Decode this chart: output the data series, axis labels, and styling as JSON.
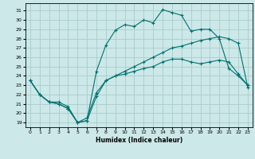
{
  "xlabel": "Humidex (Indice chaleur)",
  "bg_color": "#cce8e8",
  "grid_color": "#aacccc",
  "line_color": "#007070",
  "xlim": [
    -0.5,
    23.5
  ],
  "ylim": [
    18.5,
    31.8
  ],
  "xticks": [
    0,
    1,
    2,
    3,
    4,
    5,
    6,
    7,
    8,
    9,
    10,
    11,
    12,
    13,
    14,
    15,
    16,
    17,
    18,
    19,
    20,
    21,
    22,
    23
  ],
  "yticks": [
    19,
    20,
    21,
    22,
    23,
    24,
    25,
    26,
    27,
    28,
    29,
    30,
    31
  ],
  "line1_x": [
    0,
    1,
    2,
    3,
    4,
    5,
    6,
    7,
    8,
    9,
    10,
    11,
    12,
    13,
    14,
    15,
    16,
    17,
    18,
    19,
    20,
    21,
    22,
    23
  ],
  "line1_y": [
    23.5,
    22.0,
    21.2,
    21.2,
    20.7,
    19.0,
    19.5,
    22.2,
    23.5,
    24.0,
    24.5,
    25.0,
    25.5,
    26.0,
    26.5,
    27.0,
    27.2,
    27.5,
    27.8,
    28.0,
    28.2,
    28.0,
    27.5,
    22.8
  ],
  "line2_x": [
    0,
    1,
    2,
    3,
    4,
    5,
    6,
    7,
    8,
    9,
    10,
    11,
    12,
    13,
    14,
    15,
    16,
    17,
    18,
    19,
    20,
    21,
    22,
    23
  ],
  "line2_y": [
    23.5,
    22.0,
    21.2,
    21.0,
    20.5,
    19.0,
    19.2,
    24.5,
    27.3,
    28.9,
    29.5,
    29.3,
    30.0,
    29.7,
    31.1,
    30.8,
    30.5,
    28.8,
    29.0,
    29.0,
    28.0,
    24.8,
    24.0,
    23.0
  ],
  "line3_x": [
    0,
    1,
    2,
    3,
    4,
    5,
    6,
    7,
    8,
    9,
    10,
    11,
    12,
    13,
    14,
    15,
    16,
    17,
    18,
    19,
    20,
    21,
    22,
    23
  ],
  "line3_y": [
    23.5,
    22.0,
    21.2,
    21.0,
    20.5,
    19.0,
    19.2,
    21.8,
    23.5,
    24.0,
    24.2,
    24.5,
    24.8,
    25.0,
    25.5,
    25.8,
    25.8,
    25.5,
    25.3,
    25.5,
    25.7,
    25.5,
    24.2,
    23.0
  ]
}
